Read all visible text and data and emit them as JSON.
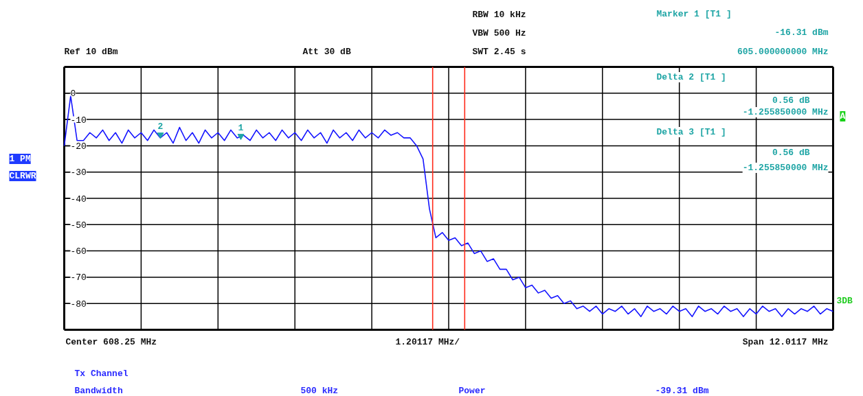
{
  "chart_data": {
    "type": "line",
    "categories": [
      null,
      null,
      null,
      null,
      null,
      null,
      null,
      null,
      null,
      null,
      null,
      null,
      null,
      null,
      null,
      null,
      null,
      null,
      null,
      null,
      null,
      null,
      null,
      null,
      null,
      null,
      null,
      null,
      null,
      null,
      null,
      null,
      null,
      null,
      null,
      null,
      null,
      null,
      null,
      null,
      null,
      null,
      null,
      null,
      null,
      null,
      null,
      null,
      null,
      null,
      null,
      null,
      null,
      null,
      null,
      null,
      null,
      null,
      null,
      null,
      null,
      null,
      null,
      null,
      null,
      null,
      null,
      null,
      null,
      null,
      null,
      null,
      null,
      null,
      null,
      null,
      null,
      null,
      null,
      null,
      null,
      null,
      null,
      null,
      null,
      null,
      null,
      null,
      null,
      null,
      null,
      null,
      null,
      null,
      null,
      null,
      null,
      null,
      null,
      null,
      null,
      null,
      null,
      null,
      null,
      null,
      null,
      null,
      null,
      null,
      null,
      null,
      null,
      null,
      null,
      null,
      null,
      null,
      null,
      null,
      null
    ],
    "ylim": [
      -90,
      10
    ],
    "yticks": [
      {
        "value": 10,
        "label": null
      },
      0,
      -10,
      -20,
      -30,
      -40,
      -50,
      -60,
      -70,
      -80,
      {
        "value": -90,
        "label": null
      }
    ],
    "tick_labels": "y",
    "grid": true,
    "series": [
      {
        "color": "#1414ff",
        "values": [
          -20,
          -1,
          -18,
          -18,
          -15,
          -17,
          -14,
          -18,
          -15,
          -19,
          -14,
          -17,
          -15,
          -18,
          -14,
          -17,
          -15,
          -19,
          -13,
          -18,
          -15,
          -19,
          -14,
          -17,
          -15,
          -18,
          -14,
          -17,
          -16,
          -18,
          -14,
          -17,
          -15,
          -18,
          -14,
          -17,
          -15,
          -18,
          -14,
          -17,
          -15,
          -19,
          -14,
          -17,
          -15,
          -18,
          -14,
          -17,
          -15,
          -17,
          -14,
          -16,
          -15,
          -17,
          -17,
          -20,
          -25,
          -44,
          -55,
          -53,
          -56,
          -55,
          -58,
          -57,
          -61,
          -60,
          -64,
          -63,
          -67,
          -67,
          -71,
          -70,
          -74,
          -73,
          -76,
          -75,
          -78,
          -77,
          -80,
          -79,
          -82,
          -81,
          -83,
          -81,
          -84,
          -82,
          -83,
          -81,
          -84,
          -82,
          -85,
          -81,
          -83,
          -82,
          -84,
          -81,
          -83,
          -82,
          -85,
          -81,
          -83,
          -82,
          -84,
          -81,
          -83,
          -82,
          -85,
          -82,
          -84,
          -81,
          -83,
          -82,
          -85,
          -82,
          -84,
          -82,
          -83,
          -81,
          -84,
          -82,
          -83
        ]
      }
    ],
    "annotations": [
      "Ref  10 dBm",
      "Att  30 dB",
      "RBW 10 kHz",
      "VBW 500 Hz",
      "SWT 2.45 s",
      "Marker 1 [T1 ]",
      "-16.31 dBm",
      "605.000000000 MHz",
      "Delta 2 [T1 ]",
      "0.56 dB",
      "-1.255850000 MHz",
      "Delta 3 [T1 ]",
      "0.56 dB",
      "-1.255850000 MHz",
      "1 PM",
      "CLRWR",
      "A",
      "3DB",
      "Center 608.25 MHz",
      "1.20117 MHz/",
      "Span 12.0117 MHz",
      "Tx Channel",
      "Bandwidth",
      "500 kHz",
      "Power",
      "-39.31 dBm",
      {
        "text": "2",
        "y": -15.8
      },
      {
        "text": "1",
        "y": -16.3
      }
    ]
  }
}
